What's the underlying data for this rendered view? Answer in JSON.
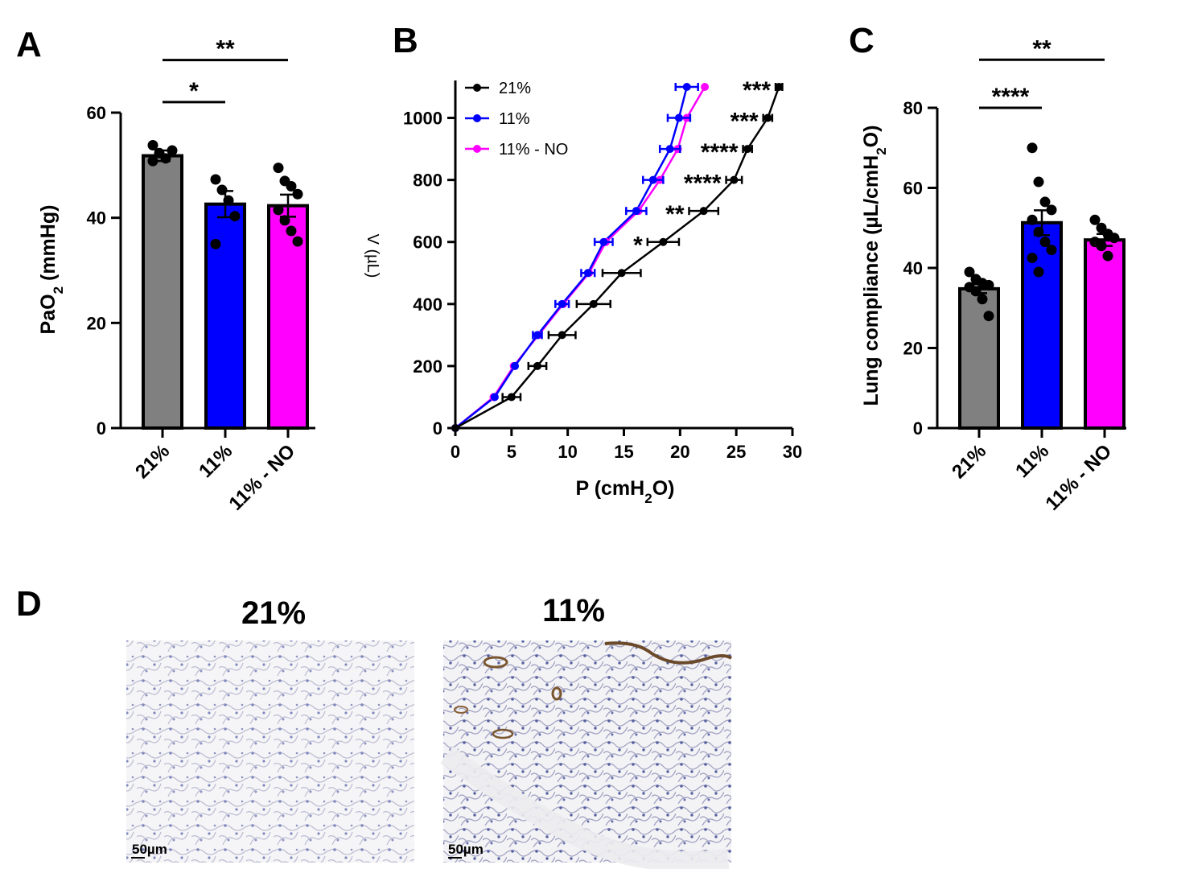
{
  "chart_data": [
    {
      "panel": "A",
      "type": "bar",
      "ylabel": "PaO2 (mmHg)",
      "ylabel_main": "PaO",
      "ylabel_sub": "2",
      "ylabel_unit": " (mmHg)",
      "ylim": [
        0,
        60
      ],
      "yticks": [
        0,
        20,
        40,
        60
      ],
      "categories": [
        "21%",
        "11%",
        "11% - NO"
      ],
      "values": [
        51.8,
        42.6,
        42.3
      ],
      "errors": [
        1.0,
        2.5,
        2.1
      ],
      "colors": [
        "#808080",
        "#0000ff",
        "#ff00ff"
      ],
      "points": [
        [
          53.8,
          52.3,
          51.3,
          52.8,
          50.8
        ],
        [
          47.3,
          45.3,
          43.3,
          40.3,
          35.0
        ],
        [
          49.5,
          47.0,
          46.0,
          44.5,
          41.5,
          39.5,
          37.5,
          35.5
        ]
      ],
      "significance": [
        {
          "from": 0,
          "to": 1,
          "label": "*",
          "level": 62
        },
        {
          "from": 0,
          "to": 2,
          "label": "**",
          "level": 70
        }
      ]
    },
    {
      "panel": "B",
      "type": "line",
      "xlabel": "P (cmH2O)",
      "xlabel_main": "P (cmH",
      "xlabel_sub": "2",
      "xlabel_end": "O)",
      "ylabel": "V (µL)",
      "xlim": [
        0,
        30
      ],
      "ylim": [
        0,
        1100
      ],
      "xticks": [
        0,
        5,
        10,
        15,
        20,
        25,
        30
      ],
      "yticks": [
        0,
        200,
        400,
        600,
        800,
        1000
      ],
      "y": [
        0,
        100,
        200,
        300,
        400,
        500,
        600,
        700,
        800,
        900,
        1000,
        1100
      ],
      "series": [
        {
          "name": "21%",
          "color": "#000000",
          "x": [
            0,
            5.0,
            7.3,
            9.5,
            12.3,
            14.8,
            18.5,
            22.1,
            24.8,
            26.0,
            27.8,
            28.8
          ],
          "xerr": [
            0,
            0.8,
            0.8,
            1.2,
            1.5,
            1.7,
            1.4,
            1.3,
            0.7,
            0.4,
            0.4,
            0.3
          ]
        },
        {
          "name": "11%",
          "color": "#0000ff",
          "x": [
            0,
            3.5,
            5.3,
            7.3,
            9.5,
            11.8,
            13.2,
            16.1,
            17.6,
            19.1,
            19.9,
            20.6
          ],
          "xerr": [
            0,
            0,
            0,
            0.4,
            0.6,
            0.6,
            0.8,
            0.9,
            0.9,
            0.9,
            1.0,
            1.0
          ]
        },
        {
          "name": "11% - NO",
          "color": "#ff00ff",
          "x": [
            0,
            3.4,
            5.2,
            7.4,
            9.6,
            11.9,
            13.4,
            16.3,
            18.2,
            19.8,
            20.6,
            22.2
          ],
          "xerr": [
            0,
            0,
            0,
            0,
            0,
            0,
            0,
            0,
            0,
            0,
            0,
            0
          ]
        }
      ],
      "legend_labels": [
        "21%",
        "11%",
        "11% - NO"
      ],
      "annotations": [
        {
          "y": 1100,
          "label": "***"
        },
        {
          "y": 1000,
          "label": "***"
        },
        {
          "y": 900,
          "label": "****"
        },
        {
          "y": 800,
          "label": "****"
        },
        {
          "y": 700,
          "label": "**"
        },
        {
          "y": 600,
          "label": "*"
        }
      ]
    },
    {
      "panel": "C",
      "type": "bar",
      "ylabel": "Lung compliance (µL/cmH2O)",
      "ylabel_main": "Lung compliance (µL/cmH",
      "ylabel_sub": "2",
      "ylabel_end": "O)",
      "ylim": [
        0,
        80
      ],
      "yticks": [
        0,
        20,
        40,
        60,
        80
      ],
      "categories": [
        "21%",
        "11%",
        "11% - NO"
      ],
      "values": [
        34.8,
        51.3,
        47.0
      ],
      "errors": [
        1.1,
        3.1,
        1.5
      ],
      "colors": [
        "#808080",
        "#0000ff",
        "#ff00ff"
      ],
      "points": [
        [
          39.0,
          37.2,
          36.2,
          35.7,
          35.2,
          34.2,
          32.2,
          28.0
        ],
        [
          70.0,
          61.5,
          56.5,
          54.5,
          52.0,
          49.0,
          46.5,
          44.5,
          42.5,
          39.0
        ],
        [
          52.0,
          50.0,
          48.5,
          47.5,
          46.5,
          45.5,
          43.0
        ]
      ],
      "significance": [
        {
          "from": 0,
          "to": 1,
          "label": "****",
          "level": 80
        },
        {
          "from": 0,
          "to": 2,
          "label": "**",
          "level": 92
        }
      ]
    }
  ],
  "panels": {
    "A": "A",
    "B": "B",
    "C": "C",
    "D": "D"
  },
  "histology": [
    {
      "title": "21%",
      "scale_label": "50µm"
    },
    {
      "title": "11%",
      "scale_label": "50µm"
    }
  ]
}
